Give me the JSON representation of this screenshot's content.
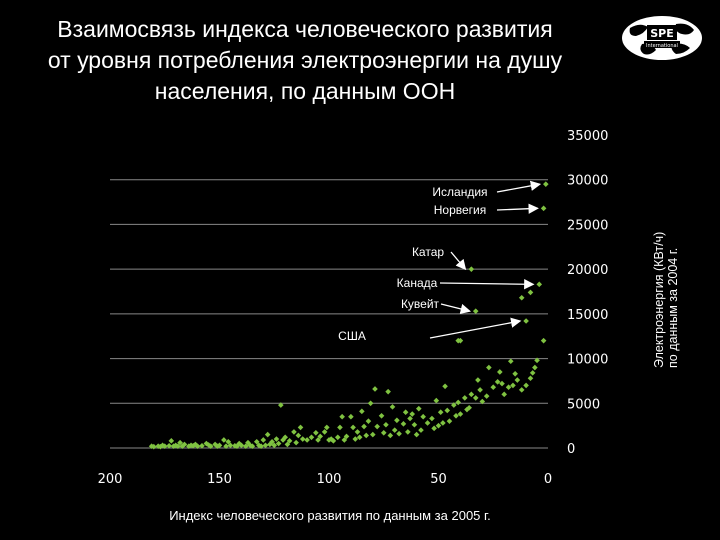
{
  "title_lines": [
    "Взаимосвязь индекса человеческого развития",
    "от уровня потребления электроэнергии на душу",
    "населения, по данным ООН"
  ],
  "logo": {
    "text": "SPE",
    "subtext": "International"
  },
  "colors": {
    "background": "#000000",
    "points": "#7fc241",
    "grid": "#888888",
    "text": "#ffffff"
  },
  "chart_data": {
    "type": "scatter",
    "xlabel": "Индекс человеческого развития по данным за 2005 г.",
    "ylabel_lines": [
      "Электроэнергия (КВт/ч)",
      "по данным за 2004 г."
    ],
    "xlim": [
      200,
      0
    ],
    "x_reversed": true,
    "ylim": [
      0,
      35000
    ],
    "x_ticks": [
      200,
      150,
      100,
      50,
      0
    ],
    "y_ticks": [
      0,
      5000,
      10000,
      15000,
      20000,
      25000,
      30000,
      35000
    ],
    "y_axis_side": "right",
    "grid": "horizontal",
    "annotations": [
      {
        "label": "Исландия",
        "x": 1,
        "y": 29500
      },
      {
        "label": "Норвегия",
        "x": 2,
        "y": 26800
      },
      {
        "label": "Катар",
        "x": 35,
        "y": 20000
      },
      {
        "label": "Канада",
        "x": 4,
        "y": 18300
      },
      {
        "label": "Кувейт",
        "x": 33,
        "y": 15300
      },
      {
        "label": "США",
        "x": 10,
        "y": 14200
      }
    ],
    "points": [
      [
        1,
        29500
      ],
      [
        2,
        26800
      ],
      [
        35,
        20000
      ],
      [
        4,
        18300
      ],
      [
        33,
        15300
      ],
      [
        10,
        14200
      ],
      [
        8,
        17400
      ],
      [
        12,
        16800
      ],
      [
        2,
        12000
      ],
      [
        40,
        12000
      ],
      [
        41,
        12000
      ],
      [
        5,
        9800
      ],
      [
        6,
        9000
      ],
      [
        7,
        8400
      ],
      [
        8,
        7800
      ],
      [
        10,
        7000
      ],
      [
        12,
        6500
      ],
      [
        14,
        7600
      ],
      [
        15,
        8300
      ],
      [
        16,
        7000
      ],
      [
        17,
        9700
      ],
      [
        18,
        6800
      ],
      [
        20,
        6000
      ],
      [
        21,
        7200
      ],
      [
        22,
        8500
      ],
      [
        23,
        7400
      ],
      [
        25,
        6800
      ],
      [
        27,
        9000
      ],
      [
        28,
        5800
      ],
      [
        30,
        5200
      ],
      [
        31,
        6500
      ],
      [
        32,
        7600
      ],
      [
        33,
        5600
      ],
      [
        35,
        6000
      ],
      [
        36,
        4500
      ],
      [
        37,
        4300
      ],
      [
        38,
        5600
      ],
      [
        40,
        3800
      ],
      [
        41,
        5100
      ],
      [
        42,
        3600
      ],
      [
        43,
        4800
      ],
      [
        45,
        3000
      ],
      [
        46,
        4200
      ],
      [
        47,
        6900
      ],
      [
        48,
        2800
      ],
      [
        49,
        4000
      ],
      [
        50,
        2500
      ],
      [
        51,
        5300
      ],
      [
        52,
        2200
      ],
      [
        53,
        3300
      ],
      [
        55,
        2800
      ],
      [
        57,
        3500
      ],
      [
        58,
        2000
      ],
      [
        59,
        4400
      ],
      [
        60,
        1500
      ],
      [
        61,
        2600
      ],
      [
        62,
        3800
      ],
      [
        63,
        3300
      ],
      [
        64,
        1800
      ],
      [
        65,
        4000
      ],
      [
        66,
        2700
      ],
      [
        68,
        1600
      ],
      [
        69,
        3100
      ],
      [
        70,
        2000
      ],
      [
        71,
        4600
      ],
      [
        72,
        1400
      ],
      [
        73,
        6300
      ],
      [
        74,
        2600
      ],
      [
        75,
        1700
      ],
      [
        76,
        3600
      ],
      [
        78,
        2400
      ],
      [
        79,
        6600
      ],
      [
        80,
        1500
      ],
      [
        81,
        5000
      ],
      [
        82,
        3000
      ],
      [
        83,
        1400
      ],
      [
        84,
        2400
      ],
      [
        85,
        4100
      ],
      [
        86,
        1200
      ],
      [
        87,
        1800
      ],
      [
        88,
        1000
      ],
      [
        89,
        2300
      ],
      [
        90,
        3500
      ],
      [
        92,
        1300
      ],
      [
        93,
        900
      ],
      [
        94,
        3500
      ],
      [
        95,
        2300
      ],
      [
        96,
        1200
      ],
      [
        98,
        800
      ],
      [
        99,
        1000
      ],
      [
        100,
        900
      ],
      [
        101,
        2300
      ],
      [
        102,
        1800
      ],
      [
        104,
        1300
      ],
      [
        105,
        900
      ],
      [
        106,
        1700
      ],
      [
        108,
        1200
      ],
      [
        110,
        900
      ],
      [
        112,
        1000
      ],
      [
        113,
        2300
      ],
      [
        114,
        1400
      ],
      [
        115,
        600
      ],
      [
        116,
        1800
      ],
      [
        118,
        800
      ],
      [
        119,
        400
      ],
      [
        120,
        1200
      ],
      [
        121,
        900
      ],
      [
        122,
        4800
      ],
      [
        123,
        500
      ],
      [
        124,
        1000
      ],
      [
        125,
        300
      ],
      [
        126,
        700
      ],
      [
        127,
        400
      ],
      [
        128,
        1500
      ],
      [
        129,
        300
      ],
      [
        130,
        900
      ],
      [
        131,
        200
      ],
      [
        132,
        300
      ],
      [
        133,
        700
      ],
      [
        135,
        200
      ],
      [
        136,
        300
      ],
      [
        137,
        600
      ],
      [
        138,
        200
      ],
      [
        140,
        300
      ],
      [
        141,
        500
      ],
      [
        142,
        200
      ],
      [
        143,
        250
      ],
      [
        145,
        300
      ],
      [
        146,
        700
      ],
      [
        147,
        200
      ],
      [
        148,
        900
      ],
      [
        150,
        300
      ],
      [
        151,
        200
      ],
      [
        152,
        400
      ],
      [
        154,
        200
      ],
      [
        155,
        350
      ],
      [
        156,
        500
      ],
      [
        158,
        250
      ],
      [
        160,
        200
      ],
      [
        161,
        400
      ],
      [
        162,
        250
      ],
      [
        163,
        300
      ],
      [
        164,
        200
      ],
      [
        166,
        400
      ],
      [
        167,
        200
      ],
      [
        168,
        600
      ],
      [
        169,
        200
      ],
      [
        170,
        300
      ],
      [
        171,
        200
      ],
      [
        172,
        800
      ],
      [
        173,
        250
      ],
      [
        175,
        200
      ],
      [
        176,
        300
      ],
      [
        177,
        150
      ],
      [
        178,
        200
      ],
      [
        180,
        150
      ],
      [
        181,
        200
      ]
    ]
  }
}
